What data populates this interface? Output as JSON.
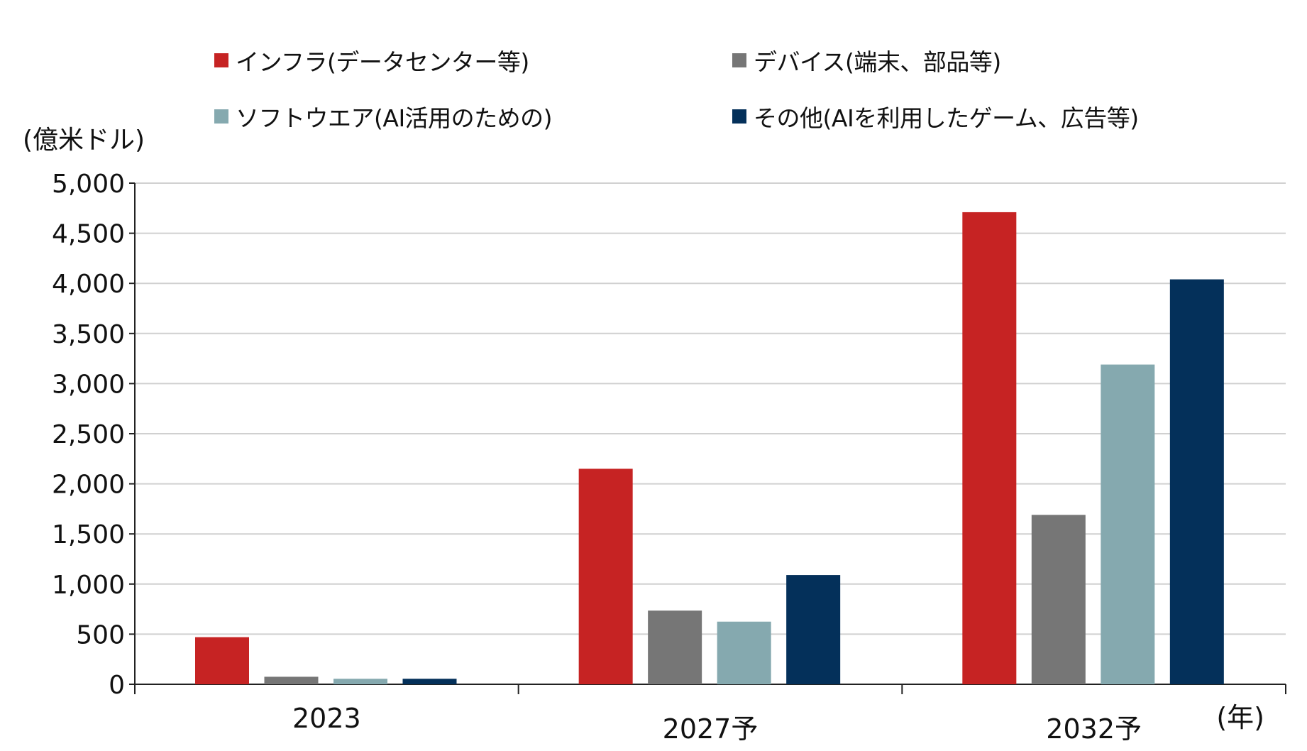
{
  "chart_data": {
    "type": "bar",
    "ylabel": "(億米ドル)",
    "xlabel": "(年)",
    "ylim": [
      0,
      5000
    ],
    "yticks": [
      0,
      500,
      1000,
      1500,
      2000,
      2500,
      3000,
      3500,
      4000,
      4500,
      5000
    ],
    "ytick_labels": [
      "0",
      "500",
      "1,000",
      "1,500",
      "2,000",
      "2,500",
      "3,000",
      "3,500",
      "4,000",
      "4,500",
      "5,000"
    ],
    "categories": [
      "2023",
      "2027予",
      "2032予"
    ],
    "grid": true,
    "legend_position": "top",
    "series": [
      {
        "name": "インフラ(データセンター等)",
        "color": "#c62323",
        "values": [
          470,
          2150,
          4710
        ]
      },
      {
        "name": "デバイス(端末、部品等)",
        "color": "#767676",
        "values": [
          75,
          735,
          1690
        ]
      },
      {
        "name": "ソフトウエア(AI活用のための)",
        "color": "#85a9af",
        "values": [
          55,
          625,
          3190
        ]
      },
      {
        "name": "その他(AIを利用したゲーム、広告等)",
        "color": "#04305a",
        "values": [
          55,
          1090,
          4040
        ]
      }
    ]
  }
}
